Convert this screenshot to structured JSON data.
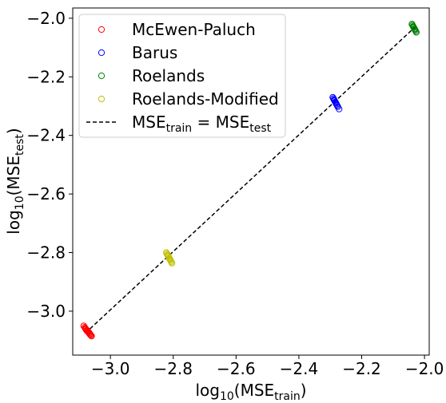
{
  "chart_data": {
    "type": "scatter",
    "title": "",
    "xlabel": {
      "prefix": "log",
      "sub": "10",
      "open": "(MSE",
      "sub2": "train",
      "close": ")"
    },
    "ylabel": {
      "prefix": "log",
      "sub": "10",
      "open": "(MSE",
      "sub2": "test",
      "close": ")"
    },
    "xlim": [
      -3.12,
      -1.985
    ],
    "ylim": [
      -3.15,
      -1.965
    ],
    "xticks": [
      {
        "value": -3.0,
        "label": "−3.0"
      },
      {
        "value": -2.8,
        "label": "−2.8"
      },
      {
        "value": -2.6,
        "label": "−2.6"
      },
      {
        "value": -2.4,
        "label": "−2.4"
      },
      {
        "value": -2.2,
        "label": "−2.2"
      },
      {
        "value": -2.0,
        "label": "−2.0"
      }
    ],
    "yticks": [
      {
        "value": -3.0,
        "label": "−3.0"
      },
      {
        "value": -2.8,
        "label": "−2.8"
      },
      {
        "value": -2.6,
        "label": "−2.6"
      },
      {
        "value": -2.4,
        "label": "−2.4"
      },
      {
        "value": -2.2,
        "label": "−2.2"
      },
      {
        "value": -2.0,
        "label": "−2.0"
      }
    ],
    "grid": false,
    "legend_position": "upper-left",
    "series": [
      {
        "name": "McEwen-Paluch",
        "color": "#ff0000",
        "marker": "open-circle",
        "points": [
          [
            -3.085,
            -3.05
          ],
          [
            -3.082,
            -3.055
          ],
          [
            -3.08,
            -3.058
          ],
          [
            -3.078,
            -3.062
          ],
          [
            -3.076,
            -3.065
          ],
          [
            -3.074,
            -3.068
          ],
          [
            -3.072,
            -3.07
          ],
          [
            -3.07,
            -3.072
          ],
          [
            -3.068,
            -3.075
          ],
          [
            -3.066,
            -3.078
          ],
          [
            -3.064,
            -3.08
          ],
          [
            -3.062,
            -3.083
          ],
          [
            -3.06,
            -3.085
          ],
          [
            -3.079,
            -3.06
          ],
          [
            -3.073,
            -3.066
          ],
          [
            -3.067,
            -3.074
          ]
        ]
      },
      {
        "name": "Barus",
        "color": "#0000ff",
        "marker": "open-circle",
        "points": [
          [
            -2.292,
            -2.27
          ],
          [
            -2.29,
            -2.274
          ],
          [
            -2.288,
            -2.278
          ],
          [
            -2.286,
            -2.282
          ],
          [
            -2.284,
            -2.286
          ],
          [
            -2.282,
            -2.29
          ],
          [
            -2.28,
            -2.294
          ],
          [
            -2.278,
            -2.298
          ],
          [
            -2.276,
            -2.302
          ],
          [
            -2.272,
            -2.31
          ],
          [
            -2.287,
            -2.28
          ],
          [
            -2.283,
            -2.288
          ]
        ]
      },
      {
        "name": "Roelands",
        "color": "#008000",
        "marker": "open-circle",
        "points": [
          [
            -2.04,
            -2.02
          ],
          [
            -2.038,
            -2.024
          ],
          [
            -2.036,
            -2.028
          ],
          [
            -2.034,
            -2.032
          ],
          [
            -2.032,
            -2.036
          ],
          [
            -2.03,
            -2.04
          ],
          [
            -2.028,
            -2.044
          ],
          [
            -2.026,
            -2.048
          ],
          [
            -2.035,
            -2.03
          ],
          [
            -2.031,
            -2.038
          ]
        ]
      },
      {
        "name": "Roelands-Modified",
        "color": "#bfbf00",
        "marker": "open-circle",
        "points": [
          [
            -2.822,
            -2.8
          ],
          [
            -2.82,
            -2.804
          ],
          [
            -2.818,
            -2.808
          ],
          [
            -2.816,
            -2.812
          ],
          [
            -2.814,
            -2.816
          ],
          [
            -2.812,
            -2.82
          ],
          [
            -2.81,
            -2.824
          ],
          [
            -2.808,
            -2.828
          ],
          [
            -2.806,
            -2.832
          ],
          [
            -2.804,
            -2.836
          ],
          [
            -2.817,
            -2.81
          ],
          [
            -2.811,
            -2.822
          ]
        ]
      }
    ],
    "reference_line": {
      "name_prefix": "MSE",
      "name_sub": "train",
      "name_mid": " = MSE",
      "name_sub2": "test",
      "color": "#000000",
      "style": "dashed",
      "from": [
        -3.08,
        -3.075
      ],
      "to": [
        -2.03,
        -2.03
      ]
    }
  }
}
